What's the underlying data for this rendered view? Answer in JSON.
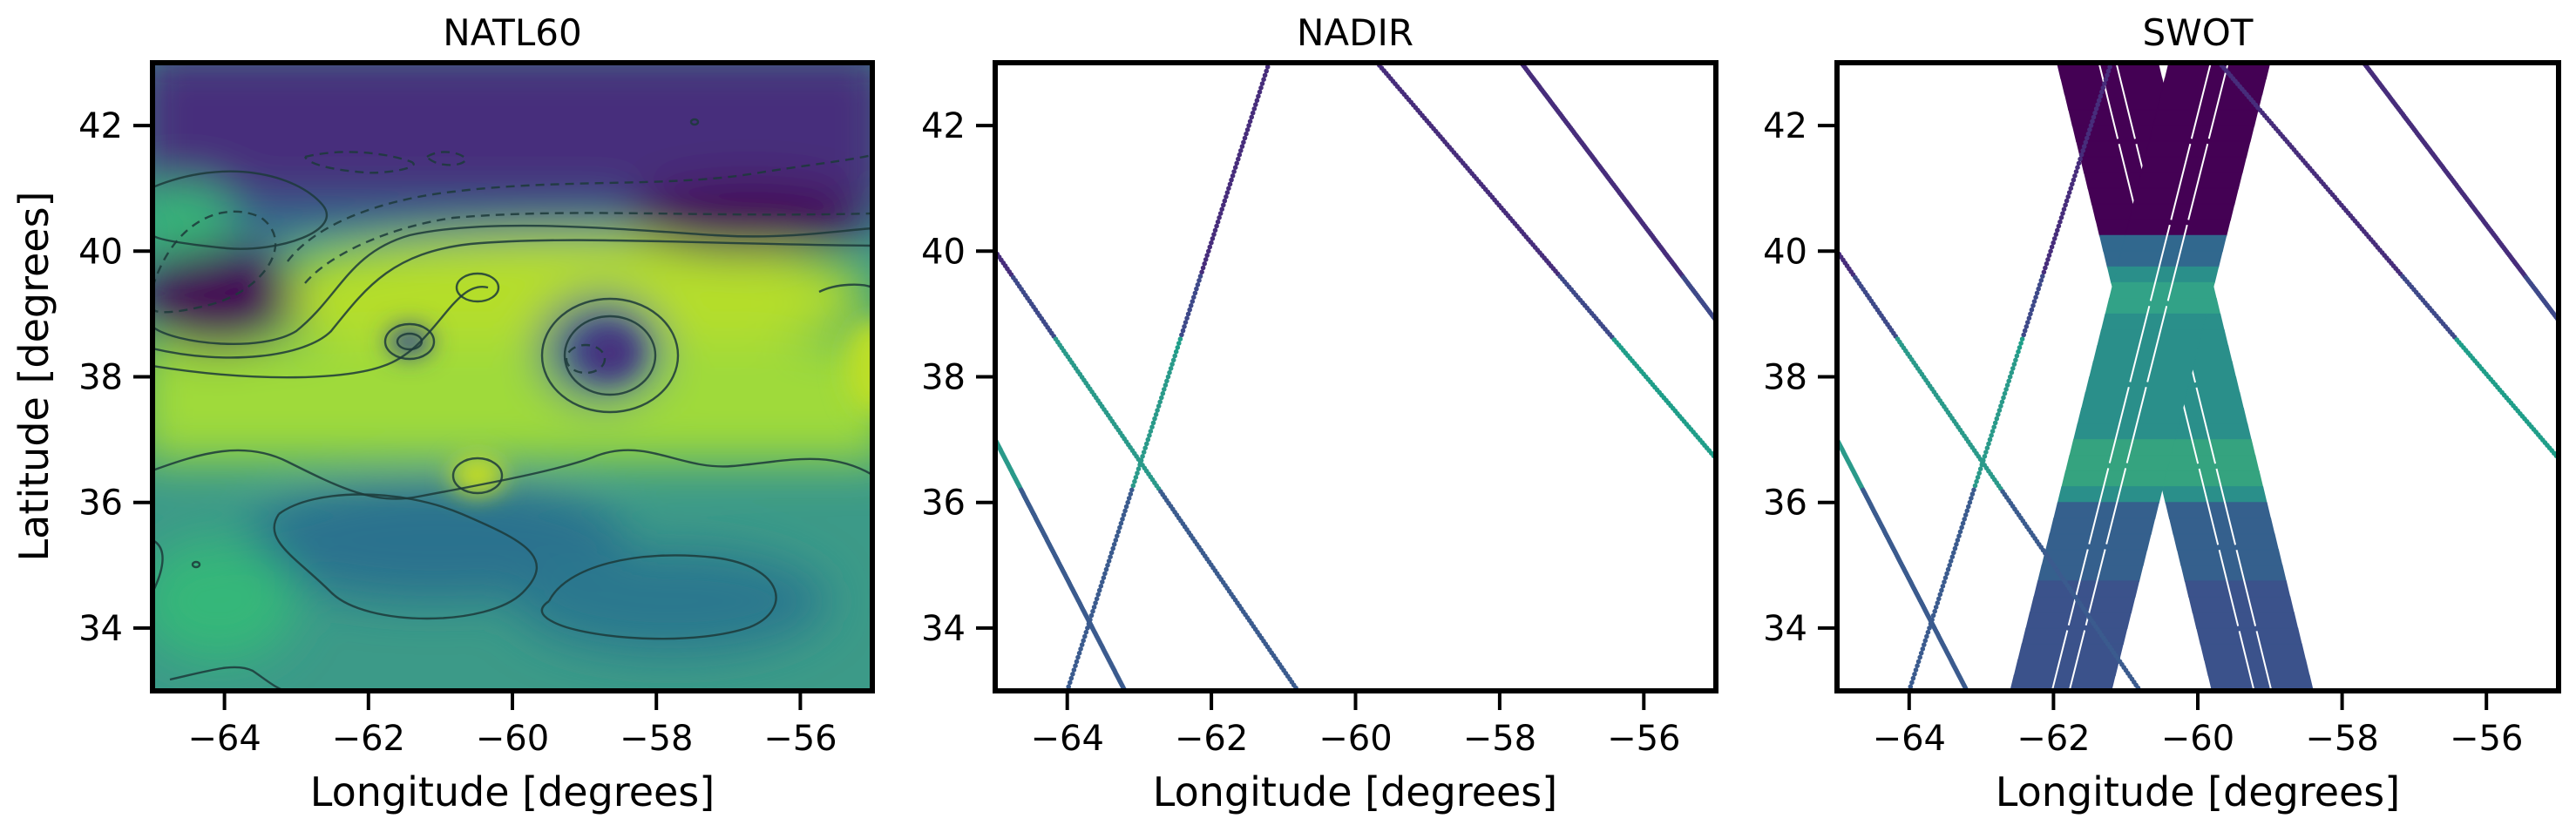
{
  "chart_data": [
    {
      "type": "heatmap",
      "title": "NATL60",
      "xlabel": "Longitude [degrees]",
      "ylabel": "Latitude [degrees]",
      "xlim": [
        -65,
        -55
      ],
      "ylim": [
        33,
        43
      ],
      "xticks": [
        -64,
        -62,
        -60,
        -58,
        -56
      ],
      "xtick_labels": [
        "−64",
        "−62",
        "−60",
        "−58",
        "−56"
      ],
      "yticks": [
        34,
        36,
        38,
        40,
        42
      ],
      "ytick_labels": [
        "34",
        "36",
        "38",
        "40",
        "42"
      ],
      "colormap": "viridis",
      "contours": true,
      "features": [
        {
          "kind": "low",
          "lon": -63.5,
          "lat": 39.0
        },
        {
          "kind": "low",
          "lon": -59.0,
          "lat": 38.3
        },
        {
          "kind": "low",
          "lon": -61.4,
          "lat": 38.5
        },
        {
          "kind": "high",
          "lon": -60.5,
          "lat": 36.5
        },
        {
          "kind": "high",
          "lon": -60.8,
          "lat": 39.3
        },
        {
          "kind": "high",
          "lon": -64.3,
          "lat": 40.6
        }
      ]
    },
    {
      "type": "scatter",
      "title": "NADIR",
      "xlabel": "Longitude [degrees]",
      "ylabel": "",
      "xlim": [
        -65,
        -55
      ],
      "ylim": [
        33,
        43
      ],
      "xticks": [
        -64,
        -62,
        -60,
        -58,
        -56
      ],
      "xtick_labels": [
        "−64",
        "−62",
        "−60",
        "−58",
        "−56"
      ],
      "yticks": [
        34,
        36,
        38,
        40,
        42
      ],
      "ytick_labels": [
        "34",
        "36",
        "38",
        "40",
        "42"
      ],
      "colormap": "viridis",
      "tracks": [
        {
          "start": [
            -65.0,
            40.0
          ],
          "end": [
            -60.8,
            33.0
          ]
        },
        {
          "start": [
            -65.0,
            37.0
          ],
          "end": [
            -63.2,
            33.0
          ]
        },
        {
          "start": [
            -61.2,
            43.0
          ],
          "end": [
            -64.0,
            33.0
          ]
        },
        {
          "start": [
            -59.7,
            43.0
          ],
          "end": [
            -55.0,
            36.7
          ]
        },
        {
          "start": [
            -57.7,
            43.0
          ],
          "end": [
            -55.0,
            38.9
          ]
        }
      ]
    },
    {
      "type": "scatter",
      "title": "SWOT",
      "xlabel": "Longitude [degrees]",
      "ylabel": "",
      "xlim": [
        -65,
        -55
      ],
      "ylim": [
        33,
        43
      ],
      "xticks": [
        -64,
        -62,
        -60,
        -58,
        -56
      ],
      "xtick_labels": [
        "−64",
        "−62",
        "−60",
        "−58",
        "−56"
      ],
      "yticks": [
        34,
        36,
        38,
        40,
        42
      ],
      "ytick_labels": [
        "34",
        "36",
        "38",
        "40",
        "42"
      ],
      "colormap": "viridis",
      "swaths": [
        {
          "center_top": [
            -61.25,
            43.0
          ],
          "center_bottom": [
            -59.1,
            33.0
          ],
          "width_lon": 1.4
        },
        {
          "center_top": [
            -59.7,
            43.0
          ],
          "center_bottom": [
            -61.9,
            33.0
          ],
          "width_lon": 1.4
        }
      ],
      "tracks": [
        {
          "start": [
            -65.0,
            40.0
          ],
          "end": [
            -60.8,
            33.0
          ]
        },
        {
          "start": [
            -65.0,
            37.0
          ],
          "end": [
            -63.2,
            33.0
          ]
        },
        {
          "start": [
            -61.2,
            43.0
          ],
          "end": [
            -64.0,
            33.0
          ]
        },
        {
          "start": [
            -59.7,
            43.0
          ],
          "end": [
            -55.0,
            36.7
          ]
        },
        {
          "start": [
            -57.7,
            43.0
          ],
          "end": [
            -55.0,
            38.9
          ]
        }
      ]
    }
  ]
}
